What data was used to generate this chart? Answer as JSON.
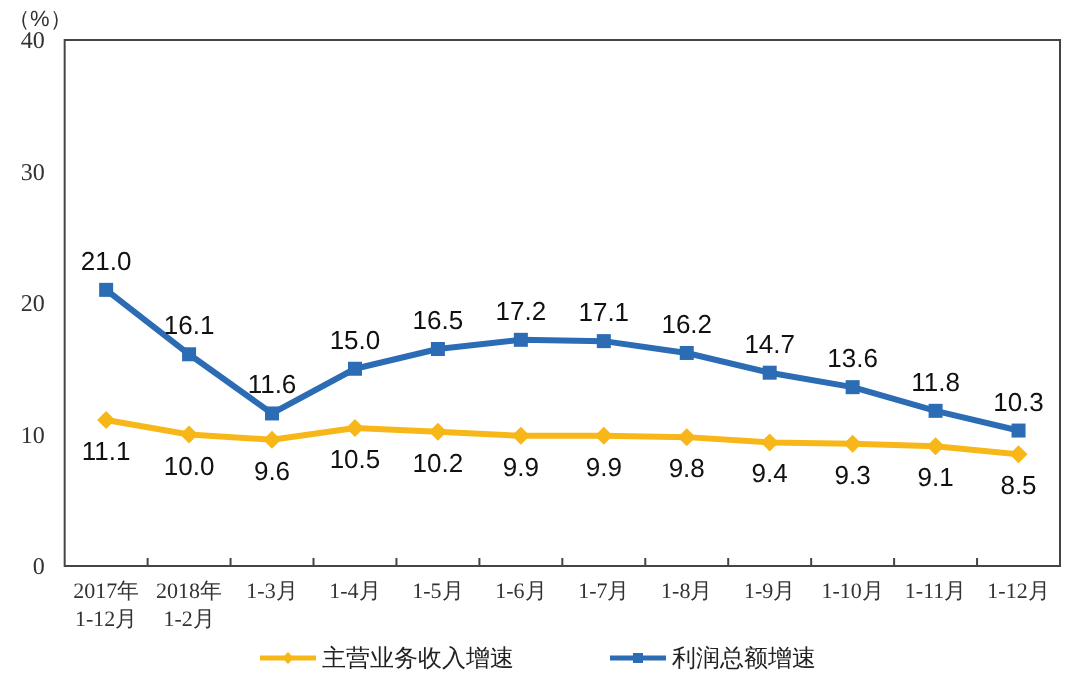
{
  "chart_data": {
    "type": "line",
    "ylabel": "（%）",
    "categories": [
      "2017年\n1-12月",
      "2018年\n1-2月",
      "1-3月",
      "1-4月",
      "1-5月",
      "1-6月",
      "1-7月",
      "1-8月",
      "1-9月",
      "1-10月",
      "1-11月",
      "1-12月"
    ],
    "series": [
      {
        "name": "主营业务收入增速",
        "color": "#f7b718",
        "marker": "diamond",
        "values": [
          11.1,
          10.0,
          9.6,
          10.5,
          10.2,
          9.9,
          9.9,
          9.8,
          9.4,
          9.3,
          9.1,
          8.5
        ],
        "value_labels": [
          "11.1",
          "10.0",
          "9.6",
          "10.5",
          "10.2",
          "9.9",
          "9.9",
          "9.8",
          "9.4",
          "9.3",
          "9.1",
          "8.5"
        ]
      },
      {
        "name": "利润总额增速",
        "color": "#2b6cb5",
        "marker": "square",
        "values": [
          21.0,
          16.1,
          11.6,
          15.0,
          16.5,
          17.2,
          17.1,
          16.2,
          14.7,
          13.6,
          11.8,
          10.3
        ],
        "value_labels": [
          "21.0",
          "16.1",
          "11.6",
          "15.0",
          "16.5",
          "17.2",
          "17.1",
          "16.2",
          "14.7",
          "13.6",
          "11.8",
          "10.3"
        ]
      }
    ],
    "ylim": [
      0,
      40
    ],
    "yticks": [
      0,
      10,
      20,
      30,
      40
    ],
    "legend": "bottom",
    "grid": false
  }
}
